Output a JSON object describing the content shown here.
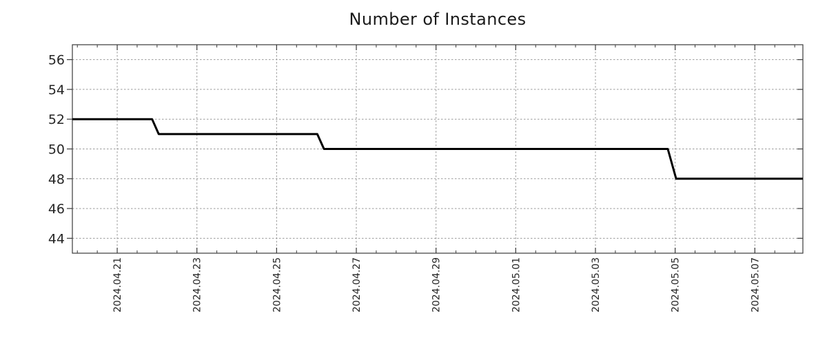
{
  "chart_data": {
    "type": "line",
    "subtype": "step",
    "title": "Number of Instances",
    "xlabel": "",
    "ylabel": "",
    "grid": true,
    "legend": false,
    "line_color": "#000000",
    "line_width": 3,
    "x_axis": {
      "unit": "datetime",
      "start": "2024-04-19 21:00",
      "end": "2024-05-08 05:00",
      "span_days": 18.33,
      "major_ticks": [
        {
          "day": 1.125,
          "label": "2024.04.21"
        },
        {
          "day": 3.125,
          "label": "2024.04.23"
        },
        {
          "day": 5.125,
          "label": "2024.04.25"
        },
        {
          "day": 7.125,
          "label": "2024.04.27"
        },
        {
          "day": 9.125,
          "label": "2024.04.29"
        },
        {
          "day": 11.125,
          "label": "2024.05.01"
        },
        {
          "day": 13.125,
          "label": "2024.05.03"
        },
        {
          "day": 15.125,
          "label": "2024.05.05"
        },
        {
          "day": 17.125,
          "label": "2024.05.07"
        }
      ],
      "minor_tick_offset_days": 0.125,
      "minor_tick_interval_days": 0.5
    },
    "y_axis": {
      "min": 43.0,
      "max": 57.0,
      "major_ticks": [
        44,
        46,
        48,
        50,
        52,
        54,
        56
      ]
    },
    "series": [
      {
        "name": "instances",
        "points": [
          {
            "time": "2024-04-19 21:00",
            "day": 0,
            "value": 52
          },
          {
            "time": "2024-04-21 21:00",
            "day": 2.0,
            "value": 52
          },
          {
            "time": "2024-04-22 01:00",
            "day": 2.167,
            "value": 51
          },
          {
            "time": "2024-04-26 00:30",
            "day": 6.146,
            "value": 51
          },
          {
            "time": "2024-04-26 04:30",
            "day": 6.313,
            "value": 50
          },
          {
            "time": "2024-05-04 20:30",
            "day": 14.94,
            "value": 50
          },
          {
            "time": "2024-05-05 01:30",
            "day": 15.15,
            "value": 48
          },
          {
            "time": "2024-05-08 05:00",
            "day": 18.33,
            "value": 48
          }
        ]
      }
    ],
    "colors": {
      "grid": "#999999",
      "axis": "#3a3a3a",
      "text": "#262626",
      "title": "#1a1a1a",
      "background": "#ffffff"
    }
  }
}
